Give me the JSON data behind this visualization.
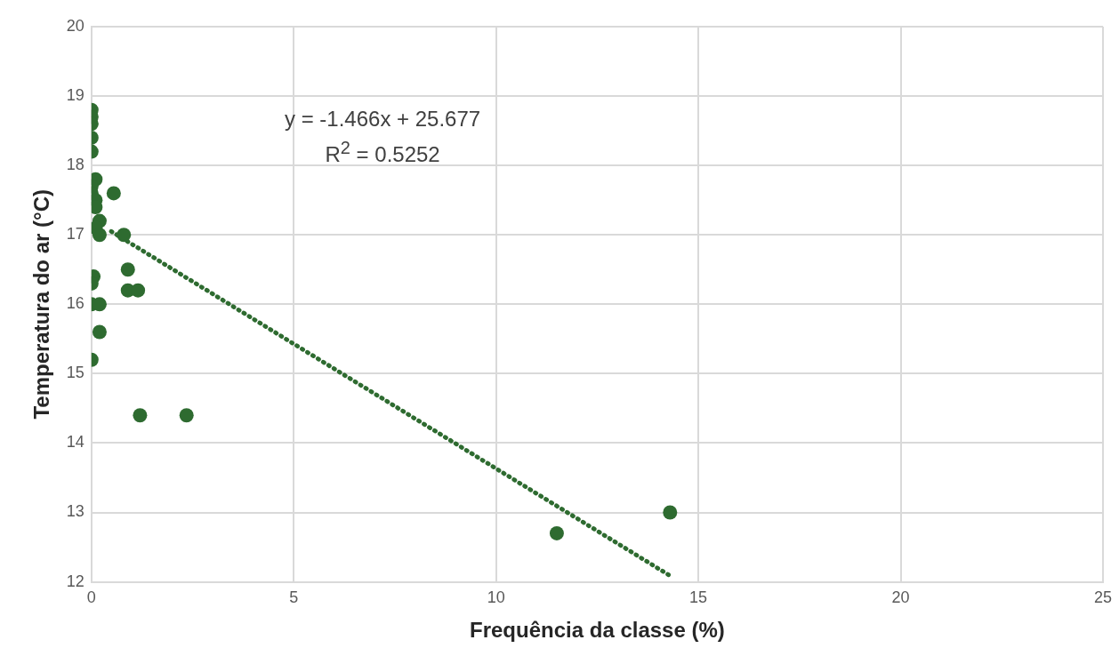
{
  "chart_data": {
    "type": "scatter",
    "xlabel": "Frequência da classe (%)",
    "ylabel": "Temperatura do ar (°C)",
    "xlim": [
      0,
      25
    ],
    "xticks": [
      0,
      5,
      10,
      15,
      20,
      25
    ],
    "ylim": [
      12,
      20
    ],
    "yticks": [
      12,
      13,
      14,
      15,
      16,
      17,
      18,
      19,
      20
    ],
    "grid": true,
    "marker": "circle",
    "annotations": [
      "y = -1.466x + 25.677",
      "R$^{2}$ = 0.5252"
    ],
    "series": [
      {
        "color": "#2e6b30",
        "x": [
          0,
          0,
          0,
          0,
          0,
          0.1,
          0,
          0,
          0.1,
          0.1,
          0.2,
          0.1,
          0.2,
          0.55,
          0.8,
          0.9,
          0.9,
          1.15,
          0.05,
          0,
          0,
          0.2,
          0.2,
          0,
          1.2,
          2.35,
          11.5,
          14.3
        ],
        "values": [
          18.8,
          18.7,
          18.6,
          18.4,
          18.2,
          17.8,
          17.7,
          17.6,
          17.5,
          17.4,
          17.2,
          17.1,
          17.0,
          17.6,
          17.0,
          16.5,
          16.2,
          16.2,
          16.4,
          16.3,
          16.0,
          16.0,
          15.6,
          15.2,
          14.4,
          14.4,
          12.7,
          13.0
        ]
      },
      {
        "type": "line",
        "color": "#2e6b30",
        "line_style": "dotted",
        "marker": "none",
        "x": [
          0.49,
          14.35
        ],
        "values": [
          17.05,
          12.07
        ]
      }
    ]
  }
}
